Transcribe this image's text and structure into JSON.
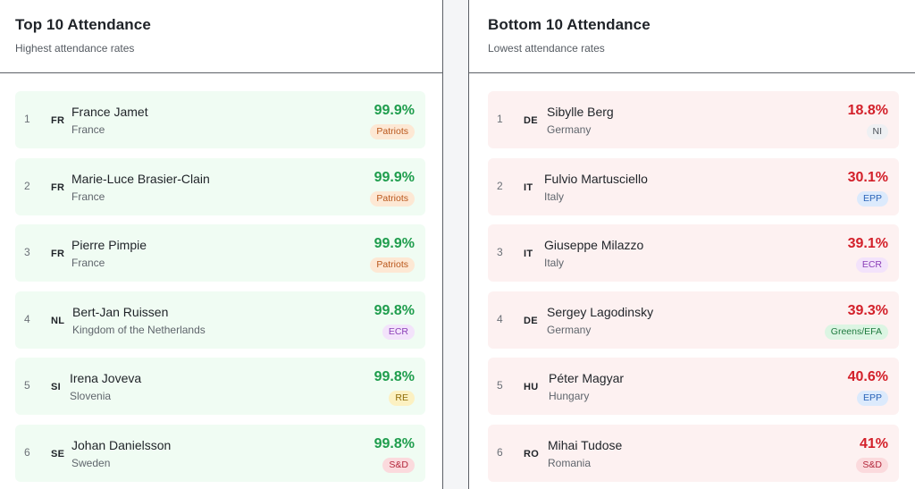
{
  "top": {
    "title": "Top 10 Attendance",
    "subtitle": "Highest attendance rates",
    "items": [
      {
        "rank": "1",
        "code": "FR",
        "name": "France Jamet",
        "country": "France",
        "rate": "99.9%",
        "group": "Patriots",
        "group_bg": "#fde8d4",
        "group_fg": "#b9561a",
        "name_x": 63
      },
      {
        "rank": "2",
        "code": "FR",
        "name": "Marie-Luce Brasier-Clain",
        "country": "France",
        "rate": "99.9%",
        "group": "Patriots",
        "group_bg": "#fde8d4",
        "group_fg": "#b9561a",
        "name_x": 63
      },
      {
        "rank": "3",
        "code": "FR",
        "name": "Pierre Pimpie",
        "country": "France",
        "rate": "99.9%",
        "group": "Patriots",
        "group_bg": "#fde8d4",
        "group_fg": "#b9561a",
        "name_x": 63
      },
      {
        "rank": "4",
        "code": "NL",
        "name": "Bert-Jan Ruissen",
        "country": "Kingdom of the Netherlands",
        "rate": "99.8%",
        "group": "ECR",
        "group_bg": "#f3e3fb",
        "group_fg": "#8a3fb7",
        "name_x": 64
      },
      {
        "rank": "5",
        "code": "SI",
        "name": "Irena Joveva",
        "country": "Slovenia",
        "rate": "99.8%",
        "group": "RE",
        "group_bg": "#fcf1c2",
        "group_fg": "#8e6b06",
        "name_x": 61
      },
      {
        "rank": "6",
        "code": "SE",
        "name": "Johan Danielsson",
        "country": "Sweden",
        "rate": "99.8%",
        "group": "S&D",
        "group_bg": "#fbdadd",
        "group_fg": "#b3263a",
        "name_x": 63
      }
    ]
  },
  "bottom": {
    "title": "Bottom 10 Attendance",
    "subtitle": "Lowest attendance rates",
    "items": [
      {
        "rank": "1",
        "code": "DE",
        "name": "Sibylle Berg",
        "country": "Germany",
        "rate": "18.8%",
        "group": "NI",
        "group_bg": "#eef0f3",
        "group_fg": "#4b5159",
        "name_x": 66
      },
      {
        "rank": "2",
        "code": "IT",
        "name": "Fulvio Martusciello",
        "country": "Italy",
        "rate": "30.1%",
        "group": "EPP",
        "group_bg": "#dceafc",
        "group_fg": "#2a63b7",
        "name_x": 63
      },
      {
        "rank": "3",
        "code": "IT",
        "name": "Giuseppe Milazzo",
        "country": "Italy",
        "rate": "39.1%",
        "group": "ECR",
        "group_bg": "#f3e3fb",
        "group_fg": "#8a3fb7",
        "name_x": 63
      },
      {
        "rank": "4",
        "code": "DE",
        "name": "Sergey Lagodinsky",
        "country": "Germany",
        "rate": "39.3%",
        "group": "Greens/EFA",
        "group_bg": "#dcf5e3",
        "group_fg": "#1f7a3f",
        "name_x": 66
      },
      {
        "rank": "5",
        "code": "HU",
        "name": "Péter Magyar",
        "country": "Hungary",
        "rate": "40.6%",
        "group": "EPP",
        "group_bg": "#dceafc",
        "group_fg": "#2a63b7",
        "name_x": 68
      },
      {
        "rank": "6",
        "code": "RO",
        "name": "Mihai Tudose",
        "country": "Romania",
        "rate": "41%",
        "group": "S&D",
        "group_bg": "#fbdadd",
        "group_fg": "#b3263a",
        "name_x": 67
      }
    ]
  }
}
